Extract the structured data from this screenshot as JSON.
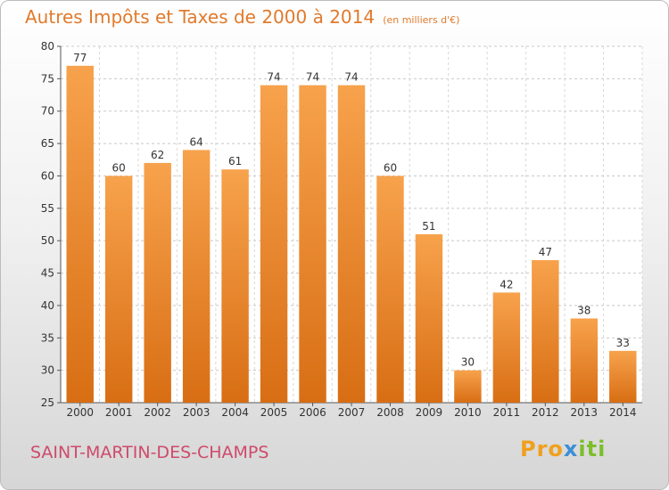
{
  "chart_data": {
    "type": "bar",
    "title": "Autres Impôts et Taxes de 2000 à 2014",
    "subtitle": "(en milliers d'€)",
    "categories": [
      "2000",
      "2001",
      "2002",
      "2003",
      "2004",
      "2005",
      "2006",
      "2007",
      "2008",
      "2009",
      "2010",
      "2011",
      "2012",
      "2013",
      "2014"
    ],
    "values": [
      77,
      60,
      62,
      64,
      61,
      74,
      74,
      74,
      60,
      51,
      30,
      42,
      47,
      38,
      33
    ],
    "ylim": [
      25,
      80
    ],
    "yticks": [
      25,
      30,
      35,
      40,
      45,
      50,
      55,
      60,
      65,
      70,
      75,
      80
    ],
    "grid": true,
    "bar_color": "#f28c28"
  },
  "footer": {
    "place": "SAINT-MARTIN-DES-CHAMPS",
    "logo_part1": "Pro",
    "logo_part2": "x",
    "logo_part3": "iti"
  }
}
